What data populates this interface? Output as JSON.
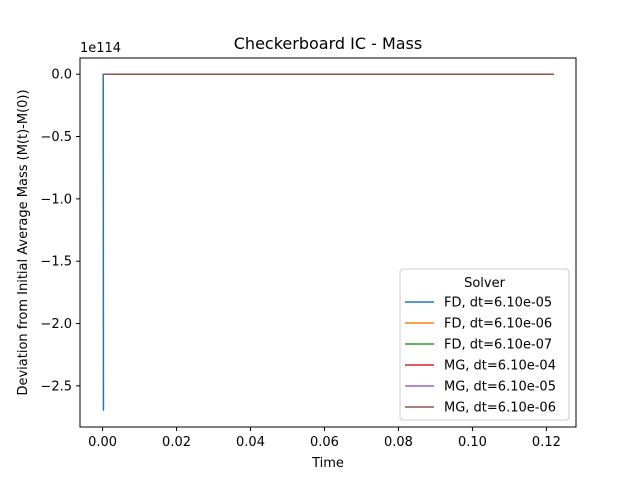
{
  "chart_data": {
    "type": "line",
    "title": "Checkerboard IC - Mass",
    "xlabel": "Time",
    "ylabel": "Deviation from Initial Average Mass (M(t)-M(0))",
    "y_offset_label": "1e114",
    "xlim": [
      -0.0061,
      0.128
    ],
    "ylim": [
      -2.83,
      0.13
    ],
    "x_ticks": [
      0.0,
      0.02,
      0.04,
      0.06,
      0.08,
      0.1,
      0.12
    ],
    "x_tick_labels": [
      "0.00",
      "0.02",
      "0.04",
      "0.06",
      "0.08",
      "0.10",
      "0.12"
    ],
    "y_ticks": [
      0.0,
      -0.5,
      -1.0,
      -1.5,
      -2.0,
      -2.5
    ],
    "y_tick_labels": [
      "0.0",
      "−0.5",
      "−1.0",
      "−1.5",
      "−2.0",
      "−2.5"
    ],
    "grid": false,
    "legend_title": "Solver",
    "legend_position": "lower right",
    "series": [
      {
        "name": "FD, dt=6.10e-05",
        "color": "#1f77b4",
        "x": [
          0.0,
          6.1e-05,
          0.00012,
          0.00018,
          0.00024
        ],
        "y": [
          0.0,
          0.0,
          0.0,
          0.0,
          -2.7
        ]
      },
      {
        "name": "FD, dt=6.10e-06",
        "color": "#ff7f0e",
        "x": [
          0.0,
          0.0305,
          0.061,
          0.0915,
          0.122
        ],
        "y": [
          0.0,
          0.0,
          0.0,
          0.0,
          0.0
        ]
      },
      {
        "name": "FD, dt=6.10e-07",
        "color": "#2ca02c",
        "x": [
          0.0,
          0.0305,
          0.061,
          0.0915,
          0.122
        ],
        "y": [
          0.0,
          0.0,
          0.0,
          0.0,
          0.0
        ]
      },
      {
        "name": "MG, dt=6.10e-04",
        "color": "#d62728",
        "x": [
          0.0,
          0.0305,
          0.061,
          0.0915,
          0.122
        ],
        "y": [
          0.0,
          0.0,
          0.0,
          0.0,
          0.0
        ]
      },
      {
        "name": "MG, dt=6.10e-05",
        "color": "#9467bd",
        "x": [
          0.0,
          0.0305,
          0.061,
          0.0915,
          0.122
        ],
        "y": [
          0.0,
          0.0,
          0.0,
          0.0,
          0.0
        ]
      },
      {
        "name": "MG, dt=6.10e-06",
        "color": "#8c564b",
        "x": [
          0.0,
          0.0305,
          0.061,
          0.0915,
          0.122
        ],
        "y": [
          0.0,
          0.0,
          0.0,
          0.0,
          0.0
        ]
      }
    ]
  }
}
